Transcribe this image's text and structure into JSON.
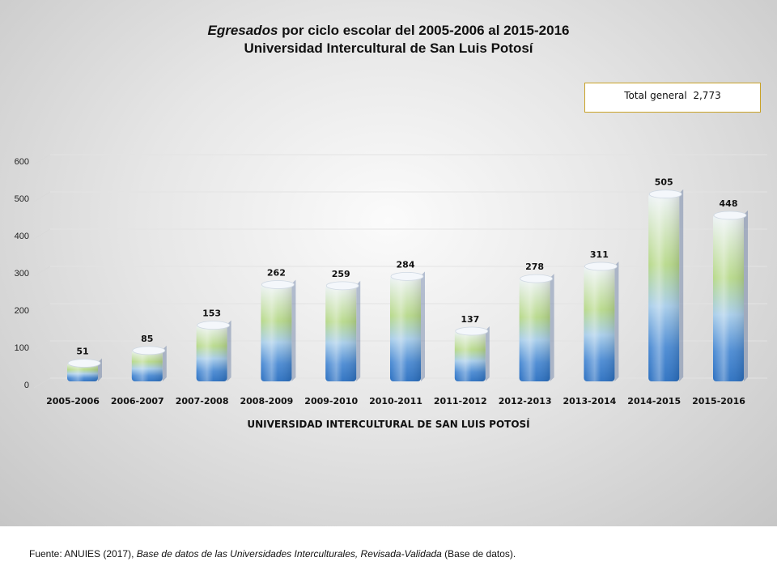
{
  "title": {
    "italic_part": "Egresados",
    "rest": " por ciclo escolar del  2005-2006 al 2015-2016",
    "line2": "Universidad Intercultural de San Luis Potosí"
  },
  "total_box": {
    "label": "Total general",
    "value": "2,773"
  },
  "source": {
    "prefix": "Fuente: ANUIES (2017), ",
    "italic": "Base de datos de las Universidades Interculturales, Revisada-Validada",
    "suffix": " (Base de datos)."
  },
  "chart_data": {
    "type": "bar",
    "title": "Egresados por ciclo escolar del 2005-2006 al 2015-2016 Universidad Intercultural de San Luis Potosí",
    "xlabel": "UNIVERSIDAD INTERCULTURAL DE SAN LUIS POTOSÍ",
    "ylabel": "",
    "categories": [
      "2005-2006",
      "2006-2007",
      "2007-2008",
      "2008-2009",
      "2009-2010",
      "2010-2011",
      "2011-2012",
      "2012-2013",
      "2013-2014",
      "2014-2015",
      "2015-2016"
    ],
    "values": [
      51,
      85,
      153,
      262,
      259,
      284,
      137,
      278,
      311,
      505,
      448
    ],
    "ylim": [
      0,
      600
    ],
    "yticks": [
      0,
      100,
      200,
      300,
      400,
      500,
      600
    ],
    "grid": true,
    "legend": "none",
    "colors": {
      "bar_bottom": "#2a6fc0",
      "bar_mid": "#b7d98a",
      "bar_top": "#eef3f8"
    }
  }
}
